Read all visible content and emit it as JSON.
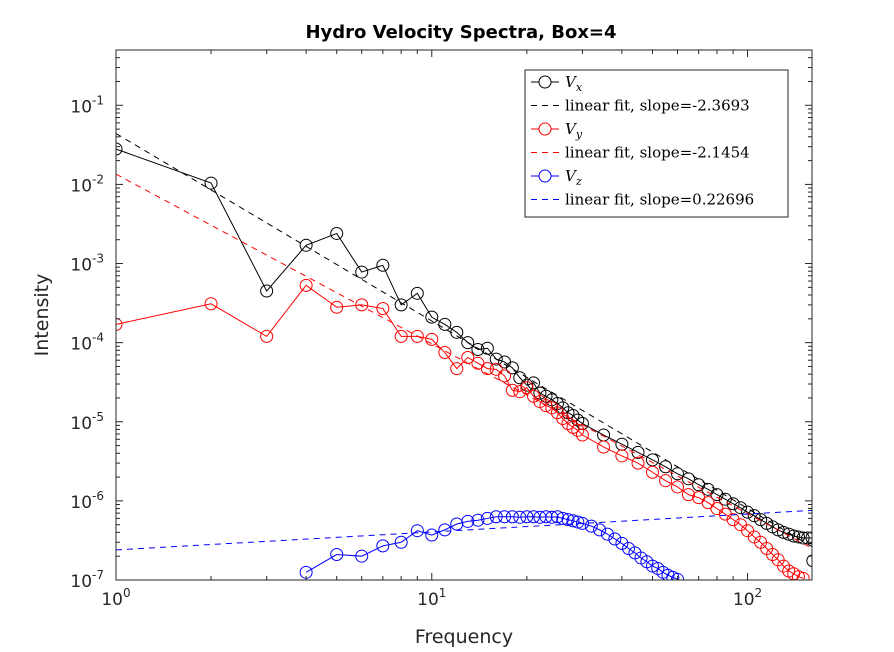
{
  "chart_data": {
    "type": "line",
    "title": "Hydro Velocity Spectra, Box=4",
    "xlabel": "Frequency",
    "ylabel": "Intensity",
    "xscale": "log",
    "yscale": "log",
    "xlim": [
      1,
      160
    ],
    "ylim": [
      1e-07,
      0.5
    ],
    "x_ticks": [
      {
        "value": 1,
        "base": "10",
        "exp": "0"
      },
      {
        "value": 10,
        "base": "10",
        "exp": "1"
      },
      {
        "value": 100,
        "base": "10",
        "exp": "2"
      }
    ],
    "y_ticks": [
      {
        "value": 1e-07,
        "base": "10",
        "exp": "-7"
      },
      {
        "value": 1e-06,
        "base": "10",
        "exp": "-6"
      },
      {
        "value": 1e-05,
        "base": "10",
        "exp": "-5"
      },
      {
        "value": 0.0001,
        "base": "10",
        "exp": "-4"
      },
      {
        "value": 0.001,
        "base": "10",
        "exp": "-3"
      },
      {
        "value": 0.01,
        "base": "10",
        "exp": "-2"
      },
      {
        "value": 0.1,
        "base": "10",
        "exp": "-1"
      }
    ],
    "grid": false,
    "legend_position": "top-right",
    "series": [
      {
        "name": "V_x",
        "legend_symbol": "V",
        "legend_sub": "x",
        "color": "#000000",
        "marker": "circle",
        "x": [
          1,
          2,
          3,
          4,
          5,
          6,
          7,
          8,
          9,
          10,
          11,
          12,
          13,
          14,
          15,
          16,
          17,
          18,
          19,
          20,
          21,
          22,
          23,
          24,
          25,
          26,
          27,
          28,
          29,
          30,
          35,
          40,
          45,
          50,
          55,
          60,
          65,
          70,
          75,
          80,
          85,
          90,
          95,
          100,
          105,
          110,
          115,
          120,
          125,
          130,
          135,
          140,
          145,
          150,
          155,
          160,
          161
        ],
        "y": [
          0.028,
          0.0104,
          0.00045,
          0.0017,
          0.0024,
          0.00078,
          0.00095,
          0.0003,
          0.00042,
          0.00021,
          0.00017,
          0.000135,
          0.0001,
          8.2e-05,
          8.5e-05,
          6.2e-05,
          5.7e-05,
          4.8e-05,
          3.6e-05,
          2.9e-05,
          3.1e-05,
          2.3e-05,
          2.1e-05,
          1.9e-05,
          1.7e-05,
          1.5e-05,
          1.3e-05,
          1.2e-05,
          1.05e-05,
          9.5e-06,
          6.8e-06,
          5.2e-06,
          4.1e-06,
          3.3e-06,
          2.7e-06,
          2.2e-06,
          1.9e-06,
          1.6e-06,
          1.4e-06,
          1.2e-06,
          1.05e-06,
          9.2e-07,
          8.2e-07,
          7.2e-07,
          6.5e-07,
          5.8e-07,
          5.2e-07,
          4.7e-07,
          4.3e-07,
          4e-07,
          3.8e-07,
          3.6e-07,
          3.5e-07,
          3.4e-07,
          3.4e-07,
          3.4e-07,
          1.75e-07
        ]
      },
      {
        "name": "linear fit, slope=-2.3693",
        "legend_text": "linear fit, slope=-2.3693",
        "color": "#000000",
        "dashed": true,
        "fit": {
          "slope": -2.3693,
          "y_at_1": 0.044
        }
      },
      {
        "name": "V_y",
        "legend_symbol": "V",
        "legend_sub": "y",
        "color": "#ff0000",
        "marker": "circle",
        "x": [
          1,
          2,
          3,
          4,
          5,
          6,
          7,
          8,
          9,
          10,
          11,
          12,
          13,
          14,
          15,
          16,
          17,
          18,
          19,
          20,
          21,
          22,
          23,
          24,
          25,
          26,
          27,
          28,
          29,
          30,
          35,
          40,
          45,
          50,
          55,
          60,
          65,
          70,
          75,
          80,
          85,
          90,
          95,
          100,
          105,
          110,
          115,
          120,
          125,
          130,
          135,
          140,
          145,
          150
        ],
        "y": [
          0.00017,
          0.00031,
          0.00012,
          0.00053,
          0.00028,
          0.0003,
          0.00027,
          0.00012,
          0.00012,
          0.00011,
          7.5e-05,
          4.7e-05,
          6.5e-05,
          5.5e-05,
          4.7e-05,
          4.6e-05,
          3.8e-05,
          2.5e-05,
          2.4e-05,
          2.7e-05,
          2.1e-05,
          1.8e-05,
          1.6e-05,
          1.5e-05,
          1.3e-05,
          1.1e-05,
          9.5e-06,
          8.5e-06,
          7.8e-06,
          6.8e-06,
          4.8e-06,
          3.7e-06,
          3e-06,
          2.3e-06,
          1.8e-06,
          1.5e-06,
          1.2e-06,
          1.1e-06,
          9.5e-07,
          8e-07,
          6.8e-07,
          5.8e-07,
          5e-07,
          4.2e-07,
          3.5e-07,
          3e-07,
          2.5e-07,
          2.1e-07,
          1.8e-07,
          1.5e-07,
          1.3e-07,
          1.2e-07,
          1.1e-07,
          1.05e-07
        ]
      },
      {
        "name": "linear fit, slope=-2.1454",
        "legend_text": "linear fit, slope=-2.1454",
        "color": "#ff0000",
        "dashed": true,
        "fit": {
          "slope": -2.1454,
          "y_at_1": 0.0135
        }
      },
      {
        "name": "V_z",
        "legend_symbol": "V",
        "legend_sub": "z",
        "color": "#0000ff",
        "marker": "circle",
        "x": [
          4,
          5,
          6,
          7,
          8,
          9,
          10,
          11,
          12,
          13,
          14,
          15,
          16,
          17,
          18,
          19,
          20,
          21,
          22,
          23,
          24,
          25,
          26,
          27,
          28,
          29,
          30,
          32,
          34,
          36,
          38,
          40,
          42,
          44,
          46,
          48,
          50,
          52,
          54,
          56,
          58,
          60
        ],
        "y": [
          1.25e-07,
          2.1e-07,
          2e-07,
          2.7e-07,
          3e-07,
          4.2e-07,
          3.7e-07,
          4.3e-07,
          5.1e-07,
          5.5e-07,
          5.7e-07,
          6e-07,
          6.3e-07,
          6.3e-07,
          6.3e-07,
          6.2e-07,
          6.3e-07,
          6.3e-07,
          6.2e-07,
          6.3e-07,
          6.2e-07,
          6.3e-07,
          6e-07,
          5.8e-07,
          5.6e-07,
          5.4e-07,
          5.2e-07,
          4.8e-07,
          4.3e-07,
          3.8e-07,
          3.3e-07,
          2.9e-07,
          2.5e-07,
          2.2e-07,
          1.9e-07,
          1.7e-07,
          1.5e-07,
          1.4e-07,
          1.25e-07,
          1.15e-07,
          1.08e-07,
          1.02e-07
        ]
      },
      {
        "name": "linear fit, slope=0.22696",
        "legend_text": "linear fit, slope=0.22696",
        "color": "#0000ff",
        "dashed": true,
        "fit": {
          "slope": 0.22696,
          "y_at_1": 2.4e-07
        }
      }
    ]
  }
}
